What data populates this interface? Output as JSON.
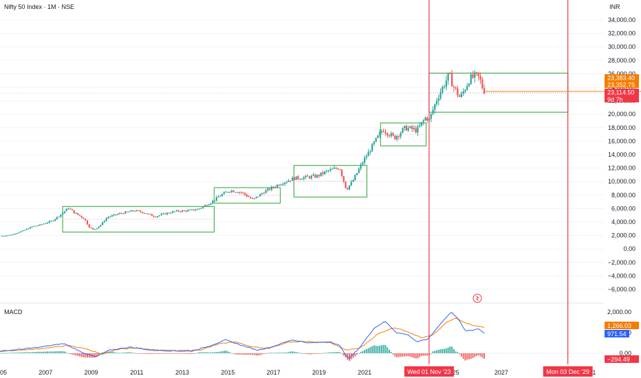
{
  "header": {
    "title": "Nifty 50 Index · 1M · NSE",
    "currency": "INR"
  },
  "macd_label": "MACD",
  "colors": {
    "up": "#26a69a",
    "down": "#ef5350",
    "box": "#4caf50",
    "vline": "#f23645",
    "macd": "#2962ff",
    "signal": "#f57c00",
    "hist_up": "#26a69a",
    "hist_down": "#ef5350"
  },
  "chart_data": {
    "type": "candlestick",
    "price_axis": {
      "min": -6000,
      "max": 34000,
      "ticks": [
        34000,
        32000,
        30000,
        28000,
        26000,
        24000,
        22000,
        20000,
        18000,
        16000,
        14000,
        12000,
        10000,
        8000,
        6000,
        4000,
        2000,
        0,
        -2000,
        -4000,
        -6000
      ],
      "tick_labels": [
        "34,000.00",
        "32,000.00",
        "30,000.00",
        "28,000.00",
        "26,000.00",
        "24,000.00",
        "22,000.00",
        "20,000.00",
        "18,000.00",
        "16,000.00",
        "14,000.00",
        "12,000.00",
        "10,000.00",
        "8,000.00",
        "6,000.00",
        "4,000.00",
        "2,000.00",
        "0.00",
        "−2,000.00",
        "−4,000.00",
        "−6,000.00"
      ]
    },
    "macd_axis": {
      "min": -500,
      "max": 2400,
      "ticks": [
        2000,
        1000,
        0
      ],
      "tick_labels": [
        "2,000.00",
        "1,000.00",
        "0.00"
      ]
    },
    "time_axis": {
      "start": 2005.0,
      "end": 2031.5,
      "labels": [
        {
          "v": 2005,
          "t": "2005"
        },
        {
          "v": 2007,
          "t": "2007"
        },
        {
          "v": 2009,
          "t": "2009"
        },
        {
          "v": 2011,
          "t": "2011"
        },
        {
          "v": 2013,
          "t": "2013"
        },
        {
          "v": 2015,
          "t": "2015"
        },
        {
          "v": 2017,
          "t": "2017"
        },
        {
          "v": 2019,
          "t": "2019"
        },
        {
          "v": 2021,
          "t": "2021"
        },
        {
          "v": 2025,
          "t": "25"
        },
        {
          "v": 2027,
          "t": "2027"
        },
        {
          "v": 2029,
          "t": "2"
        },
        {
          "v": 2031,
          "t": "31"
        }
      ]
    },
    "candle_anchors": [
      [
        2005.0,
        1900
      ],
      [
        2005.5,
        2100
      ],
      [
        2006.0,
        2700
      ],
      [
        2006.4,
        3300
      ],
      [
        2006.8,
        3600
      ],
      [
        2007.3,
        4200
      ],
      [
        2007.7,
        5200
      ],
      [
        2008.0,
        6100
      ],
      [
        2008.3,
        5300
      ],
      [
        2008.7,
        4500
      ],
      [
        2008.9,
        3300
      ],
      [
        2009.1,
        2800
      ],
      [
        2009.4,
        3500
      ],
      [
        2009.7,
        4700
      ],
      [
        2010.2,
        5200
      ],
      [
        2010.9,
        5700
      ],
      [
        2011.3,
        5400
      ],
      [
        2011.8,
        4800
      ],
      [
        2012.2,
        5200
      ],
      [
        2012.7,
        5600
      ],
      [
        2013.3,
        5700
      ],
      [
        2013.7,
        5900
      ],
      [
        2014.3,
        7000
      ],
      [
        2014.7,
        8000
      ],
      [
        2015.1,
        8700
      ],
      [
        2015.6,
        8400
      ],
      [
        2016.1,
        7300
      ],
      [
        2016.6,
        8500
      ],
      [
        2017.3,
        9700
      ],
      [
        2017.9,
        10500
      ],
      [
        2018.3,
        10600
      ],
      [
        2018.9,
        10800
      ],
      [
        2019.4,
        11600
      ],
      [
        2019.9,
        12100
      ],
      [
        2020.2,
        8800
      ],
      [
        2020.5,
        10200
      ],
      [
        2020.9,
        12800
      ],
      [
        2021.4,
        15600
      ],
      [
        2021.8,
        17800
      ],
      [
        2022.3,
        16500
      ],
      [
        2022.8,
        18000
      ],
      [
        2023.3,
        17600
      ],
      [
        2023.7,
        19600
      ],
      [
        2023.83,
        19080
      ],
      [
        2024.2,
        22500
      ],
      [
        2024.7,
        25800
      ],
      [
        2024.95,
        23800
      ],
      [
        2025.2,
        22400
      ],
      [
        2025.6,
        25200
      ],
      [
        2025.9,
        25700
      ],
      [
        2026.05,
        25300
      ],
      [
        2026.25,
        23114
      ]
    ],
    "ranges": [
      {
        "x0": 2007.75,
        "x1": 2014.4,
        "y0": 2500,
        "y1": 6300
      },
      {
        "x0": 2014.4,
        "x1": 2017.3,
        "y0": 6800,
        "y1": 9100
      },
      {
        "x0": 2017.9,
        "x1": 2021.1,
        "y0": 7700,
        "y1": 12400
      },
      {
        "x0": 2021.7,
        "x1": 2023.7,
        "y0": 15300,
        "y1": 18700
      },
      {
        "x0": 2023.83,
        "x1": 2029.92,
        "y0": 20300,
        "y1": 26100
      }
    ],
    "vertical_lines": [
      {
        "x": 2023.83,
        "label": "Wed 01 Nov '23"
      },
      {
        "x": 2029.92,
        "label": "Mon 03 Dec '29"
      }
    ],
    "price_tags": [
      {
        "value": 23383.4,
        "text": "23,383.40",
        "color": "#f57c00"
      },
      {
        "value": 23352.75,
        "text": "23,352.75",
        "color": "#f57c00"
      },
      {
        "value": 23114.5,
        "text": "23,114.50",
        "color": "#f23645"
      }
    ],
    "countdown": "9d 7h",
    "last_price": 23114.5,
    "macd_anchors": [
      [
        2005.0,
        100
      ],
      [
        2006.5,
        260
      ],
      [
        2007.8,
        470
      ],
      [
        2008.6,
        50
      ],
      [
        2009.2,
        -180
      ],
      [
        2009.8,
        150
      ],
      [
        2010.7,
        300
      ],
      [
        2011.6,
        150
      ],
      [
        2012.4,
        120
      ],
      [
        2013.4,
        100
      ],
      [
        2014.2,
        350
      ],
      [
        2014.9,
        650
      ],
      [
        2015.7,
        350
      ],
      [
        2016.3,
        150
      ],
      [
        2016.9,
        300
      ],
      [
        2017.8,
        650
      ],
      [
        2018.6,
        500
      ],
      [
        2019.5,
        560
      ],
      [
        2019.9,
        380
      ],
      [
        2020.3,
        -280
      ],
      [
        2020.8,
        300
      ],
      [
        2021.4,
        1200
      ],
      [
        2021.9,
        1550
      ],
      [
        2022.4,
        1000
      ],
      [
        2022.9,
        900
      ],
      [
        2023.3,
        550
      ],
      [
        2023.8,
        700
      ],
      [
        2024.3,
        1400
      ],
      [
        2024.8,
        2000
      ],
      [
        2025.1,
        1700
      ],
      [
        2025.4,
        1100
      ],
      [
        2025.7,
        1100
      ],
      [
        2026.0,
        1200
      ],
      [
        2026.25,
        971
      ]
    ],
    "signal_anchors": [
      [
        2005.0,
        90
      ],
      [
        2006.6,
        200
      ],
      [
        2008.0,
        380
      ],
      [
        2008.8,
        210
      ],
      [
        2009.5,
        -60
      ],
      [
        2010.2,
        200
      ],
      [
        2011.0,
        260
      ],
      [
        2011.9,
        160
      ],
      [
        2012.8,
        120
      ],
      [
        2013.8,
        160
      ],
      [
        2014.6,
        450
      ],
      [
        2015.3,
        560
      ],
      [
        2016.1,
        300
      ],
      [
        2016.8,
        240
      ],
      [
        2017.6,
        530
      ],
      [
        2018.4,
        570
      ],
      [
        2019.5,
        510
      ],
      [
        2020.2,
        150
      ],
      [
        2020.8,
        250
      ],
      [
        2021.6,
        950
      ],
      [
        2022.3,
        1250
      ],
      [
        2022.9,
        1050
      ],
      [
        2023.5,
        750
      ],
      [
        2024.0,
        880
      ],
      [
        2024.6,
        1500
      ],
      [
        2025.0,
        1700
      ],
      [
        2025.5,
        1450
      ],
      [
        2025.9,
        1320
      ],
      [
        2026.25,
        1266
      ]
    ],
    "macd_tags": [
      {
        "value": 1266.03,
        "text": "1,266.03",
        "color": "#f57c00"
      },
      {
        "value": 971.54,
        "text": "971.54",
        "color": "#2962ff"
      },
      {
        "value": -294.49,
        "text": "−294.49",
        "color": "#f23645"
      }
    ]
  }
}
